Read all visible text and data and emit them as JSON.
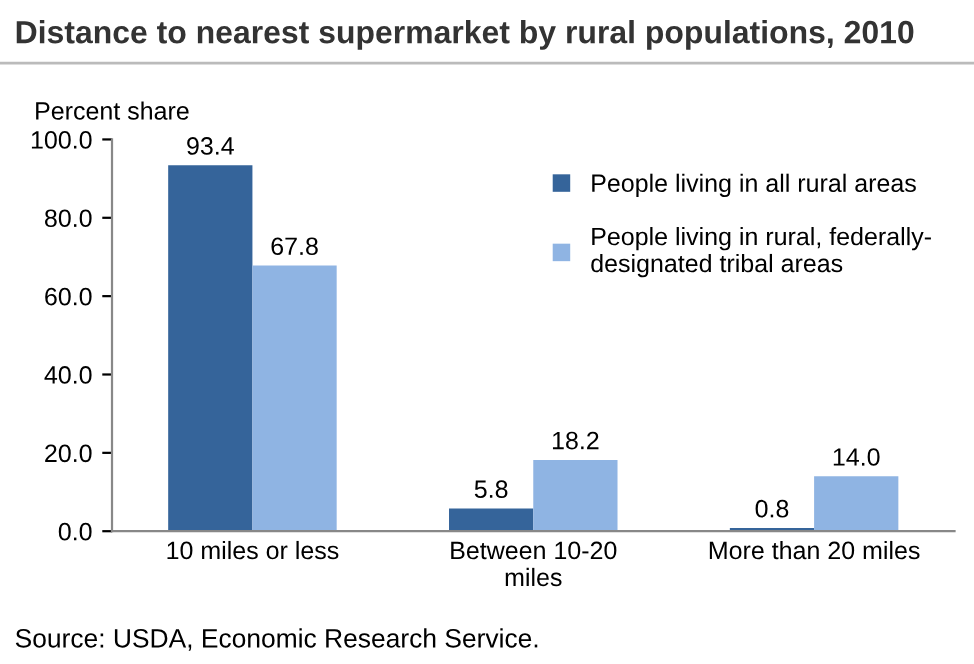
{
  "chart_data": {
    "type": "bar",
    "title": "Distance to nearest supermarket by rural populations, 2010",
    "ylabel": "Percent share",
    "categories": [
      "10 miles or less",
      "Between 10-20\nmiles",
      "More than 20 miles"
    ],
    "series": [
      {
        "name": "People living in all rural areas",
        "color": "#35649a",
        "values": [
          93.4,
          5.8,
          0.8
        ],
        "value_labels": [
          "93.4",
          "5.8",
          "0.8"
        ]
      },
      {
        "name": "People living in rural, federally-\ndesignated tribal areas",
        "color": "#8fb4e3",
        "values": [
          67.8,
          18.2,
          14.0
        ],
        "value_labels": [
          "67.8",
          "18.2",
          "14.0"
        ]
      }
    ],
    "ylim": [
      0,
      100
    ],
    "yticks": [
      {
        "value": 0,
        "label": "0.0"
      },
      {
        "value": 20,
        "label": "20.0"
      },
      {
        "value": 40,
        "label": "40.0"
      },
      {
        "value": 60,
        "label": "60.0"
      },
      {
        "value": 80,
        "label": "80.0"
      },
      {
        "value": 100,
        "label": "100.0"
      }
    ],
    "grid": false,
    "legend": "top right",
    "annotations": [
      "Source: USDA, Economic Research Service."
    ]
  }
}
